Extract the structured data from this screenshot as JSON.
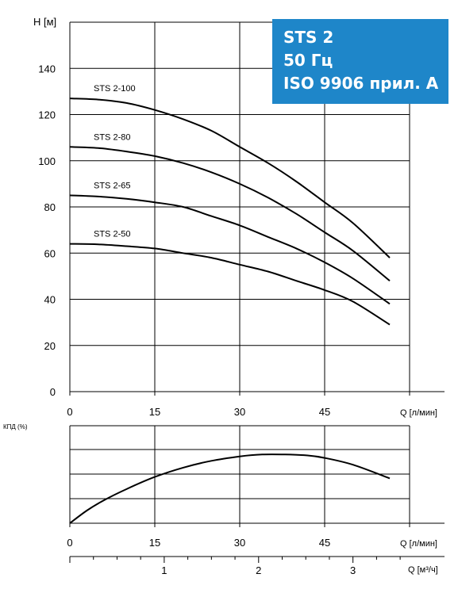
{
  "title": {
    "lines": [
      "STS 2",
      "50 Гц",
      "ISO 9906 прил. A"
    ],
    "background": "#1e86c9",
    "color": "#ffffff"
  },
  "chart_data": [
    {
      "type": "line",
      "ylabel": "H [м]",
      "xlabel": "Q [л/мин]",
      "xlim": [
        0,
        60
      ],
      "ylim": [
        0,
        160
      ],
      "x_ticks": [
        0,
        15,
        30,
        45
      ],
      "y_ticks": [
        0,
        20,
        40,
        60,
        80,
        100,
        120,
        140
      ],
      "grid": true,
      "series": [
        {
          "name": "STS 2-100",
          "x": [
            0,
            5,
            10,
            15,
            20,
            25,
            30,
            35,
            40,
            45,
            50,
            56.5
          ],
          "y": [
            127,
            126.5,
            125,
            122,
            118,
            113,
            106,
            99,
            91,
            82,
            73,
            58
          ]
        },
        {
          "name": "STS 2-80",
          "x": [
            0,
            5,
            10,
            15,
            20,
            25,
            30,
            35,
            40,
            45,
            50,
            56.5
          ],
          "y": [
            106,
            105.5,
            104,
            102,
            99,
            95,
            90,
            84,
            77,
            69,
            61,
            48
          ]
        },
        {
          "name": "STS 2-65",
          "x": [
            0,
            5,
            10,
            15,
            20,
            25,
            30,
            35,
            40,
            45,
            50,
            56.5
          ],
          "y": [
            85,
            84.5,
            83.5,
            82,
            80,
            76,
            72,
            67,
            62,
            56,
            49,
            38
          ]
        },
        {
          "name": "STS 2-50",
          "x": [
            0,
            5,
            10,
            15,
            20,
            25,
            30,
            35,
            40,
            45,
            50,
            56.5
          ],
          "y": [
            64,
            63.8,
            63,
            62,
            60,
            58,
            55,
            52,
            48,
            44,
            39,
            29
          ]
        }
      ]
    },
    {
      "type": "line",
      "ylabel": "КПД (%)",
      "xlabel": "Q [л/мин]",
      "xlim": [
        0,
        60
      ],
      "x_ticks": [
        0,
        15,
        30,
        45
      ],
      "grid": true,
      "series": [
        {
          "name": "",
          "x": [
            0,
            3,
            6,
            10,
            15,
            20,
            25,
            30,
            34,
            38,
            42,
            45,
            50,
            56.5
          ],
          "y": [
            0,
            0.26,
            0.47,
            0.7,
            0.95,
            1.14,
            1.28,
            1.37,
            1.41,
            1.41,
            1.39,
            1.34,
            1.2,
            0.92
          ]
        }
      ]
    },
    {
      "type": "axis",
      "xlabel": "Q [м³/ч]",
      "x_ticks": [
        1,
        2,
        3
      ],
      "q_lmin_per_unit": 16.667
    }
  ]
}
